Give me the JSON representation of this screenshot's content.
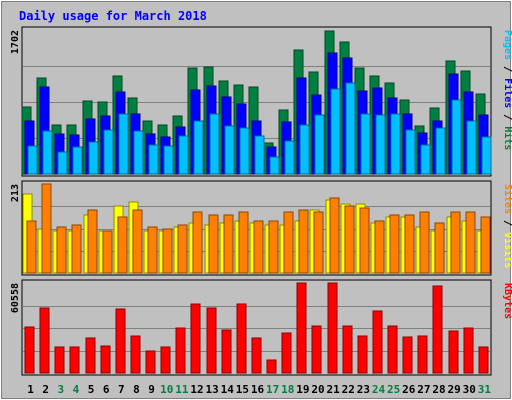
{
  "chart_data": {
    "type": "bar",
    "title": "Daily usage for March 2018",
    "days": [
      "1",
      "2",
      "3",
      "4",
      "5",
      "6",
      "7",
      "8",
      "9",
      "10",
      "11",
      "12",
      "13",
      "14",
      "15",
      "16",
      "17",
      "18",
      "19",
      "20",
      "21",
      "22",
      "23",
      "24",
      "25",
      "26",
      "27",
      "28",
      "29",
      "30",
      "31"
    ],
    "weekend_days": [
      "3",
      "4",
      "10",
      "11",
      "17",
      "18",
      "24",
      "25",
      "31"
    ],
    "panels": [
      {
        "id": "hits",
        "max_label": "1702",
        "ymax": 1702,
        "right_label": [
          {
            "text": "Pages",
            "color": "#00c0ff"
          },
          {
            "text": " / ",
            "color": "#000000"
          },
          {
            "text": "Files",
            "color": "#0000ff"
          },
          {
            "text": " / ",
            "color": "#000000"
          },
          {
            "text": "Hits",
            "color": "#008040"
          }
        ],
        "series": [
          {
            "name": "Hits",
            "color": "#008040",
            "values": [
              790,
              1140,
              580,
              580,
              860,
              850,
              1160,
              895,
              625,
              575,
              680,
              1250,
              1265,
              1100,
              1050,
              1025,
              370,
              760,
              1470,
              1200,
              1690,
              1560,
              1250,
              1155,
              1080,
              875,
              570,
              785,
              1335,
              1220,
              945
            ]
          },
          {
            "name": "Files",
            "color": "#0000ff",
            "values": [
              630,
              1030,
              470,
              460,
              645,
              690,
              970,
              710,
              475,
              440,
              555,
              995,
              1035,
              910,
              825,
              625,
              325,
              610,
              1140,
              935,
              1430,
              1370,
              985,
              1015,
              900,
              705,
              480,
              625,
              1180,
              975,
              700
            ]
          },
          {
            "name": "Pages",
            "color": "#00c0ff",
            "values": [
              330,
              505,
              260,
              320,
              375,
              520,
              705,
              505,
              345,
              330,
              450,
              630,
              705,
              570,
              540,
              455,
              205,
              395,
              580,
              695,
              1010,
              1070,
              705,
              695,
              710,
              525,
              345,
              540,
              875,
              625,
              440
            ]
          }
        ]
      },
      {
        "id": "visits",
        "max_label": "213",
        "ymax": 213,
        "right_label": [
          {
            "text": "Sites",
            "color": "#ff8000"
          },
          {
            "text": " / ",
            "color": "#000000"
          },
          {
            "text": "Visits",
            "color": "#ffff00"
          }
        ],
        "series": [
          {
            "name": "Visits",
            "color": "#ffff00",
            "values": [
              190,
              105,
              100,
              100,
              140,
              100,
              160,
              170,
              100,
              100,
              110,
              120,
              115,
              120,
              125,
              120,
              115,
              115,
              125,
              150,
              175,
              165,
              165,
              120,
              135,
              135,
              110,
              100,
              135,
              125,
              100
            ]
          },
          {
            "name": "Sites",
            "color": "#ff8000",
            "values": [
              125,
              213,
              110,
              115,
              150,
              100,
              135,
              150,
              110,
              105,
              115,
              145,
              140,
              140,
              145,
              125,
              125,
              145,
              150,
              145,
              180,
              160,
              155,
              125,
              140,
              140,
              145,
              120,
              145,
              145,
              135
            ]
          }
        ]
      },
      {
        "id": "kbytes",
        "max_label": "60558",
        "ymax": 60558,
        "right_label": [
          {
            "text": "KBytes",
            "color": "#ff0000"
          }
        ],
        "series": [
          {
            "name": "KBytes",
            "color": "#ff0000",
            "values": [
              31000,
              44000,
              17500,
              17500,
              23500,
              18500,
              43000,
              25000,
              14500,
              17500,
              30000,
              46500,
              44000,
              29000,
              46500,
              23500,
              9000,
              27000,
              60558,
              31500,
              60558,
              31500,
              25000,
              42000,
              31500,
              24000,
              25000,
              58500,
              28000,
              30000,
              17500
            ]
          }
        ]
      }
    ]
  }
}
